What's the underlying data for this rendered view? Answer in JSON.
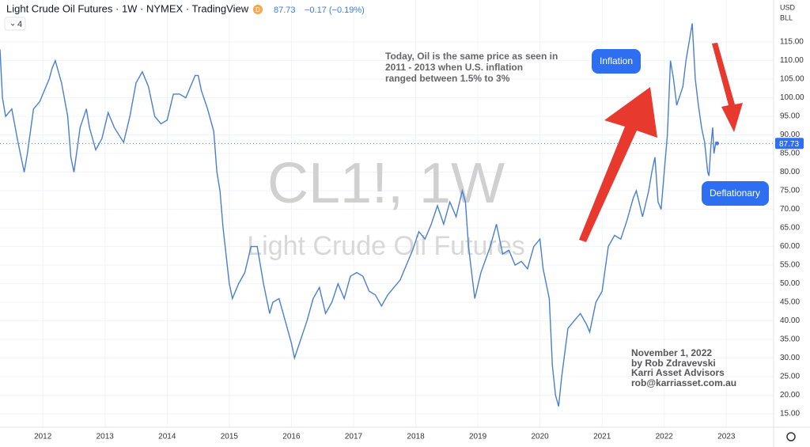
{
  "header": {
    "symbol": "Light Crude Oil Futures · 1W · NYMEX · TradingView",
    "badge": "D",
    "change": "−0.17 (−0.19%)",
    "indicator_count": "4",
    "currency": "USD",
    "unit": "BLL"
  },
  "watermark": {
    "ticker": "CL1!, 1W",
    "name": "Light Crude Oil Futures"
  },
  "annotations": {
    "note": [
      "Today, Oil is the same price as seen in",
      "2011 - 2013 when U.S. inflation",
      "ranged between 1.5% to 3%"
    ],
    "inflation": "Inflation",
    "deflationary": "Deflationary",
    "signature": [
      "November 1, 2022",
      "by Rob Zdravevski",
      "Karri Asset Advisors",
      "rob@karriasset.com.au"
    ]
  },
  "chart_data": {
    "type": "line",
    "last_price": 87.73,
    "xlim": [
      2011.31,
      2023.76
    ],
    "xticks": [
      2012,
      2013,
      2014,
      2015,
      2016,
      2017,
      2018,
      2019,
      2020,
      2021,
      2022,
      2023
    ],
    "ylim": [
      11.4,
      126.3
    ],
    "yticks": [
      {
        "value": 15,
        "label": "15.00"
      },
      {
        "value": 20,
        "label": "20.00"
      },
      {
        "value": 25,
        "label": "25.00"
      },
      {
        "value": 30,
        "label": "30.00"
      },
      {
        "value": 35,
        "label": "35.00"
      },
      {
        "value": 40,
        "label": "40.00"
      },
      {
        "value": 45,
        "label": "45.00"
      },
      {
        "value": 50,
        "label": "50.00"
      },
      {
        "value": 55,
        "label": "55.00"
      },
      {
        "value": 60,
        "label": "60.00"
      },
      {
        "value": 65,
        "label": "65.00"
      },
      {
        "value": 70,
        "label": "70.00"
      },
      {
        "value": 75,
        "label": "75.00"
      },
      {
        "value": 80,
        "label": "80.00"
      },
      {
        "value": 85,
        "label": "85.00"
      },
      {
        "value": 90,
        "label": "90.00"
      },
      {
        "value": 95,
        "label": "95.00"
      },
      {
        "value": 100,
        "label": "100.00"
      },
      {
        "value": 105,
        "label": "105.00"
      },
      {
        "value": 110,
        "label": "110.00"
      },
      {
        "value": 115,
        "label": "115.00"
      }
    ],
    "grid": true,
    "series": [
      {
        "name": "CL1!",
        "color": "#4a7fd0",
        "x": [
          2011.31,
          2011.35,
          2011.4,
          2011.5,
          2011.6,
          2011.7,
          2011.75,
          2011.85,
          2011.95,
          2012.0,
          2012.1,
          2012.15,
          2012.2,
          2012.3,
          2012.4,
          2012.45,
          2012.5,
          2012.6,
          2012.7,
          2012.75,
          2012.85,
          2012.95,
          2013.05,
          2013.15,
          2013.3,
          2013.4,
          2013.5,
          2013.6,
          2013.7,
          2013.8,
          2013.9,
          2014.0,
          2014.1,
          2014.2,
          2014.3,
          2014.45,
          2014.5,
          2014.55,
          2014.65,
          2014.75,
          2014.8,
          2014.85,
          2014.9,
          2015.0,
          2015.05,
          2015.15,
          2015.25,
          2015.35,
          2015.45,
          2015.55,
          2015.65,
          2015.7,
          2015.8,
          2015.9,
          2016.0,
          2016.05,
          2016.15,
          2016.25,
          2016.35,
          2016.45,
          2016.55,
          2016.65,
          2016.75,
          2016.85,
          2016.95,
          2017.05,
          2017.15,
          2017.25,
          2017.35,
          2017.45,
          2017.55,
          2017.65,
          2017.75,
          2017.85,
          2017.95,
          2018.05,
          2018.15,
          2018.25,
          2018.35,
          2018.45,
          2018.55,
          2018.65,
          2018.75,
          2018.8,
          2018.85,
          2018.95,
          2019.05,
          2019.2,
          2019.3,
          2019.4,
          2019.5,
          2019.6,
          2019.7,
          2019.8,
          2019.9,
          2020.0,
          2020.05,
          2020.15,
          2020.2,
          2020.25,
          2020.3,
          2020.35,
          2020.45,
          2020.55,
          2020.65,
          2020.75,
          2020.8,
          2020.9,
          2021.0,
          2021.1,
          2021.2,
          2021.3,
          2021.4,
          2021.5,
          2021.55,
          2021.65,
          2021.75,
          2021.8,
          2021.85,
          2021.9,
          2021.95,
          2022.0,
          2022.05,
          2022.1,
          2022.15,
          2022.2,
          2022.3,
          2022.35,
          2022.4,
          2022.45,
          2022.5,
          2022.55,
          2022.6,
          2022.65,
          2022.7,
          2022.72,
          2022.75,
          2022.78,
          2022.8,
          2022.83,
          2022.85
        ],
        "values": [
          113,
          100,
          95,
          97,
          88,
          80,
          85,
          97,
          99,
          101,
          105,
          108,
          110,
          104,
          95,
          84,
          80,
          92,
          97,
          92,
          86,
          89,
          96,
          92,
          88,
          95,
          104,
          107,
          103,
          95,
          93,
          94,
          101,
          101,
          100,
          106,
          106,
          102,
          97,
          91,
          80,
          75,
          65,
          50,
          46,
          50,
          53,
          60,
          60,
          50,
          42,
          45,
          46,
          40,
          34,
          30,
          35,
          40,
          46,
          49,
          42,
          45,
          50,
          46,
          52,
          53,
          52,
          48,
          47,
          44,
          47,
          49,
          51,
          55,
          59,
          64,
          62,
          66,
          71,
          66,
          72,
          68,
          75,
          72,
          60,
          46,
          53,
          60,
          66,
          58,
          59,
          55,
          56,
          54,
          60,
          62,
          54,
          46,
          28,
          20,
          17,
          25,
          38,
          40,
          42,
          39,
          37,
          45,
          48,
          60,
          63,
          62,
          67,
          73,
          75,
          68,
          75,
          80,
          84,
          72,
          70,
          80,
          90,
          110,
          105,
          98,
          103,
          110,
          115,
          120,
          105,
          98,
          92,
          88,
          80,
          79,
          87,
          92,
          85,
          88,
          87.73
        ]
      }
    ]
  }
}
